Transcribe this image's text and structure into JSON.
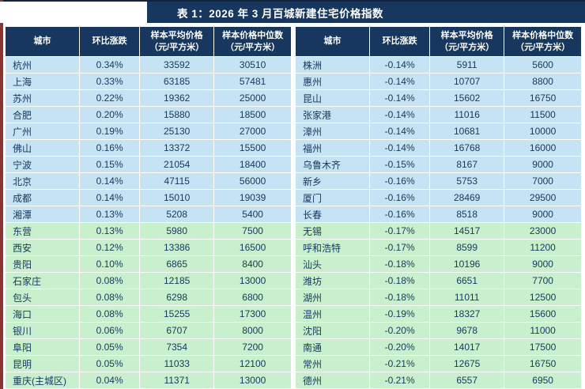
{
  "title": "表 1：2026 年 3 月百城新建住宅价格指数",
  "columns": [
    {
      "line1": "城市",
      "line2": ""
    },
    {
      "line1": "环比涨跌",
      "line2": ""
    },
    {
      "line1": "样本平均价格",
      "line2": "（元/平方米）"
    },
    {
      "line1": "样本价格中位数",
      "line2": "（元/平方米）"
    }
  ],
  "colors": {
    "header_bg": "#17375E",
    "title_bg": "#17375E",
    "row_blue": "#C5E3F2",
    "row_green": "#C8F0CD",
    "text": "#17375E",
    "left_accent": "#8c3333"
  },
  "left_rows": [
    {
      "city": "杭州",
      "change": "0.34%",
      "avg": "33592",
      "median": "30510",
      "group": "blue"
    },
    {
      "city": "上海",
      "change": "0.33%",
      "avg": "63185",
      "median": "57481",
      "group": "blue"
    },
    {
      "city": "苏州",
      "change": "0.22%",
      "avg": "19362",
      "median": "25000",
      "group": "blue"
    },
    {
      "city": "合肥",
      "change": "0.20%",
      "avg": "15880",
      "median": "18500",
      "group": "blue"
    },
    {
      "city": "广州",
      "change": "0.19%",
      "avg": "25130",
      "median": "27000",
      "group": "blue"
    },
    {
      "city": "佛山",
      "change": "0.16%",
      "avg": "13372",
      "median": "15500",
      "group": "blue"
    },
    {
      "city": "宁波",
      "change": "0.15%",
      "avg": "21054",
      "median": "18400",
      "group": "blue"
    },
    {
      "city": "北京",
      "change": "0.14%",
      "avg": "47115",
      "median": "56000",
      "group": "blue"
    },
    {
      "city": "成都",
      "change": "0.14%",
      "avg": "15010",
      "median": "19039",
      "group": "blue"
    },
    {
      "city": "湘潭",
      "change": "0.13%",
      "avg": "5208",
      "median": "5400",
      "group": "blue"
    },
    {
      "city": "东营",
      "change": "0.13%",
      "avg": "5980",
      "median": "7500",
      "group": "green"
    },
    {
      "city": "西安",
      "change": "0.12%",
      "avg": "13386",
      "median": "16500",
      "group": "green"
    },
    {
      "city": "贵阳",
      "change": "0.10%",
      "avg": "6865",
      "median": "8400",
      "group": "green"
    },
    {
      "city": "石家庄",
      "change": "0.08%",
      "avg": "12185",
      "median": "13000",
      "group": "green"
    },
    {
      "city": "包头",
      "change": "0.08%",
      "avg": "6298",
      "median": "6800",
      "group": "green"
    },
    {
      "city": "海口",
      "change": "0.08%",
      "avg": "15255",
      "median": "17300",
      "group": "green"
    },
    {
      "city": "银川",
      "change": "0.06%",
      "avg": "6707",
      "median": "8000",
      "group": "green"
    },
    {
      "city": "阜阳",
      "change": "0.05%",
      "avg": "7354",
      "median": "7200",
      "group": "green"
    },
    {
      "city": "昆明",
      "change": "0.05%",
      "avg": "11033",
      "median": "12100",
      "group": "green"
    },
    {
      "city": "重庆(主城区)",
      "change": "0.04%",
      "avg": "11371",
      "median": "13000",
      "group": "green"
    }
  ],
  "right_rows": [
    {
      "city": "株洲",
      "change": "-0.14%",
      "avg": "5911",
      "median": "5600",
      "group": "blue"
    },
    {
      "city": "惠州",
      "change": "-0.14%",
      "avg": "10707",
      "median": "8800",
      "group": "blue"
    },
    {
      "city": "昆山",
      "change": "-0.14%",
      "avg": "15602",
      "median": "16750",
      "group": "blue"
    },
    {
      "city": "张家港",
      "change": "-0.14%",
      "avg": "11016",
      "median": "11500",
      "group": "blue"
    },
    {
      "city": "漳州",
      "change": "-0.14%",
      "avg": "10681",
      "median": "10000",
      "group": "blue"
    },
    {
      "city": "福州",
      "change": "-0.14%",
      "avg": "16768",
      "median": "16000",
      "group": "blue"
    },
    {
      "city": "乌鲁木齐",
      "change": "-0.15%",
      "avg": "8167",
      "median": "9000",
      "group": "blue"
    },
    {
      "city": "新乡",
      "change": "-0.16%",
      "avg": "5753",
      "median": "7000",
      "group": "blue"
    },
    {
      "city": "厦门",
      "change": "-0.16%",
      "avg": "28469",
      "median": "29500",
      "group": "blue"
    },
    {
      "city": "长春",
      "change": "-0.16%",
      "avg": "8518",
      "median": "9000",
      "group": "blue"
    },
    {
      "city": "无锡",
      "change": "-0.17%",
      "avg": "14517",
      "median": "23000",
      "group": "green"
    },
    {
      "city": "呼和浩特",
      "change": "-0.17%",
      "avg": "8599",
      "median": "11200",
      "group": "green"
    },
    {
      "city": "汕头",
      "change": "-0.18%",
      "avg": "10196",
      "median": "9000",
      "group": "green"
    },
    {
      "city": "潍坊",
      "change": "-0.18%",
      "avg": "6651",
      "median": "7700",
      "group": "green"
    },
    {
      "city": "湖州",
      "change": "-0.18%",
      "avg": "11011",
      "median": "12500",
      "group": "green"
    },
    {
      "city": "温州",
      "change": "-0.19%",
      "avg": "18327",
      "median": "15600",
      "group": "green"
    },
    {
      "city": "沈阳",
      "change": "-0.20%",
      "avg": "9678",
      "median": "11000",
      "group": "green"
    },
    {
      "city": "南通",
      "change": "-0.20%",
      "avg": "14017",
      "median": "17500",
      "group": "green"
    },
    {
      "city": "常州",
      "change": "-0.21%",
      "avg": "12675",
      "median": "16750",
      "group": "green"
    },
    {
      "city": "德州",
      "change": "-0.21%",
      "avg": "6557",
      "median": "6950",
      "group": "green"
    }
  ]
}
